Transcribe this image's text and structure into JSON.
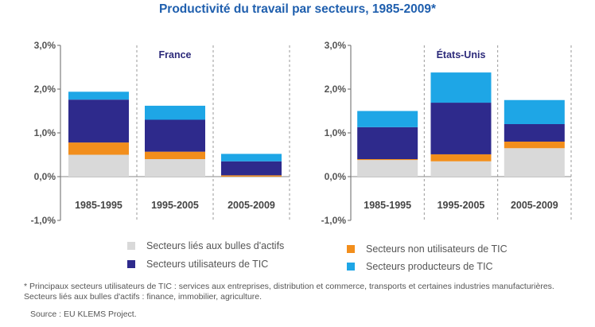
{
  "title": "Productivité du travail par secteurs, 1985-2009*",
  "chart_data": {
    "type": "bar",
    "stacked": true,
    "title": "Productivité du travail par secteurs, 1985-2009*",
    "ylim": [
      -1.0,
      3.0
    ],
    "yticks": [
      "3,0%",
      "2,0%",
      "1,0%",
      "0,0%",
      "-1,0%"
    ],
    "ytick_values": [
      3.0,
      2.0,
      1.0,
      0.0,
      -1.0
    ],
    "categories": [
      "1985-1995",
      "1995-2005",
      "2005-2009"
    ],
    "colors": {
      "bulles": "#d9d9d9",
      "non_utilisateurs": "#f28e1c",
      "utilisateurs": "#2e2a8c",
      "producteurs": "#1ea6e6"
    },
    "panels": [
      {
        "country": "France",
        "series": [
          {
            "key": "bulles",
            "name": "Secteurs liés aux bulles d'actifs",
            "values": [
              0.5,
              0.4,
              0.0
            ]
          },
          {
            "key": "non_utilisateurs",
            "name": "Secteurs non utilisateurs de TIC",
            "values": [
              0.28,
              0.17,
              0.03
            ]
          },
          {
            "key": "utilisateurs",
            "name": "Secteurs utilisateurs de TIC",
            "values": [
              0.98,
              0.73,
              0.32
            ]
          },
          {
            "key": "producteurs",
            "name": "Secteurs producteurs de TIC",
            "values": [
              0.18,
              0.32,
              0.17
            ]
          }
        ]
      },
      {
        "country": "États-Unis",
        "series": [
          {
            "key": "bulles",
            "name": "Secteurs liés aux bulles d'actifs",
            "values": [
              0.38,
              0.35,
              0.65
            ]
          },
          {
            "key": "non_utilisateurs",
            "name": "Secteurs non utilisateurs de TIC",
            "values": [
              0.02,
              0.16,
              0.15
            ]
          },
          {
            "key": "utilisateurs",
            "name": "Secteurs utilisateurs de TIC",
            "values": [
              0.73,
              1.18,
              0.4
            ]
          },
          {
            "key": "producteurs",
            "name": "Secteurs producteurs de TIC",
            "values": [
              0.37,
              0.69,
              0.55
            ]
          }
        ]
      }
    ]
  },
  "legend": {
    "bulles": "Secteurs liés aux bulles d'actifs",
    "non_utilisateurs": "Secteurs non utilisateurs de TIC",
    "utilisateurs": "Secteurs utilisateurs de TIC",
    "producteurs": "Secteurs producteurs de TIC"
  },
  "footnote": "* Principaux secteurs utilisateurs de TIC : services aux entreprises, distribution et commerce, transports et certaines industries manufacturières. Secteurs liés aux bulles d'actifs : finance, immobilier, agriculture.",
  "source": "Source : EU KLEMS Project."
}
